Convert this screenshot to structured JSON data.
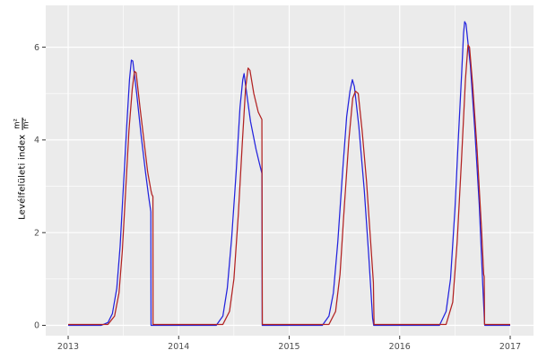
{
  "chart_data": {
    "type": "line",
    "title": "",
    "xlabel": "",
    "ylabel": {
      "text": "Levélfelületi index",
      "fraction_numerator": "m²",
      "fraction_denominator": "m²"
    },
    "x_ticks": [
      2013,
      2014,
      2015,
      2016,
      2017
    ],
    "y_ticks": [
      0,
      2,
      4,
      6
    ],
    "x_minor": [
      2013.5,
      2014.5,
      2015.5,
      2016.5
    ],
    "y_minor": [
      1,
      3,
      5
    ],
    "xlim": [
      2012.797,
      2017.211
    ],
    "ylim": [
      -0.223,
      6.902
    ],
    "grid": true,
    "legend_position": "none",
    "panel_background": "#ebebeb",
    "grid_color": "#ffffff",
    "tick_color": "#333333",
    "tick_label_color": "#4d4d4d",
    "series": [
      {
        "name": "blue-series",
        "color": "#2323dd",
        "points": [
          [
            2013.0,
            0
          ],
          [
            2013.3,
            0
          ],
          [
            2013.36,
            0.06
          ],
          [
            2013.4,
            0.25
          ],
          [
            2013.44,
            0.8
          ],
          [
            2013.47,
            1.7
          ],
          [
            2013.5,
            3.0
          ],
          [
            2013.53,
            4.3
          ],
          [
            2013.555,
            5.3
          ],
          [
            2013.572,
            5.72
          ],
          [
            2013.585,
            5.7
          ],
          [
            2013.62,
            5.0
          ],
          [
            2013.66,
            4.1
          ],
          [
            2013.7,
            3.3
          ],
          [
            2013.73,
            2.75
          ],
          [
            2013.748,
            2.45
          ],
          [
            2013.75,
            0
          ],
          [
            2014.34,
            0
          ],
          [
            2014.4,
            0.2
          ],
          [
            2014.44,
            0.8
          ],
          [
            2014.48,
            1.9
          ],
          [
            2014.52,
            3.3
          ],
          [
            2014.555,
            4.7
          ],
          [
            2014.58,
            5.3
          ],
          [
            2014.592,
            5.43
          ],
          [
            2014.61,
            5.1
          ],
          [
            2014.65,
            4.4
          ],
          [
            2014.7,
            3.8
          ],
          [
            2014.73,
            3.5
          ],
          [
            2014.753,
            3.28
          ],
          [
            2014.756,
            0
          ],
          [
            2015.3,
            0
          ],
          [
            2015.36,
            0.2
          ],
          [
            2015.4,
            0.7
          ],
          [
            2015.44,
            1.8
          ],
          [
            2015.48,
            3.2
          ],
          [
            2015.52,
            4.5
          ],
          [
            2015.55,
            5.05
          ],
          [
            2015.572,
            5.3
          ],
          [
            2015.59,
            5.15
          ],
          [
            2015.63,
            4.3
          ],
          [
            2015.68,
            2.9
          ],
          [
            2015.72,
            1.5
          ],
          [
            2015.755,
            0.15
          ],
          [
            2015.765,
            0
          ],
          [
            2016.36,
            0
          ],
          [
            2016.42,
            0.3
          ],
          [
            2016.46,
            1.0
          ],
          [
            2016.5,
            2.5
          ],
          [
            2016.53,
            4.0
          ],
          [
            2016.56,
            5.4
          ],
          [
            2016.578,
            6.3
          ],
          [
            2016.588,
            6.55
          ],
          [
            2016.6,
            6.5
          ],
          [
            2016.64,
            5.6
          ],
          [
            2016.68,
            4.2
          ],
          [
            2016.72,
            2.6
          ],
          [
            2016.755,
            0.7
          ],
          [
            2016.768,
            0.05
          ],
          [
            2016.77,
            0
          ],
          [
            2017.0,
            0
          ]
        ]
      },
      {
        "name": "red-series",
        "color": "#b22222",
        "points": [
          [
            2013.0,
            0.02
          ],
          [
            2013.36,
            0.02
          ],
          [
            2013.42,
            0.2
          ],
          [
            2013.46,
            0.7
          ],
          [
            2013.49,
            1.6
          ],
          [
            2013.52,
            2.9
          ],
          [
            2013.55,
            4.2
          ],
          [
            2013.58,
            5.1
          ],
          [
            2013.6,
            5.48
          ],
          [
            2013.615,
            5.45
          ],
          [
            2013.65,
            4.7
          ],
          [
            2013.69,
            3.9
          ],
          [
            2013.72,
            3.3
          ],
          [
            2013.75,
            2.9
          ],
          [
            2013.758,
            2.82
          ],
          [
            2013.767,
            2.78
          ],
          [
            2013.768,
            0.02
          ],
          [
            2014.4,
            0.02
          ],
          [
            2014.46,
            0.3
          ],
          [
            2014.5,
            1.0
          ],
          [
            2014.54,
            2.4
          ],
          [
            2014.575,
            3.9
          ],
          [
            2014.605,
            5.1
          ],
          [
            2014.628,
            5.55
          ],
          [
            2014.645,
            5.5
          ],
          [
            2014.68,
            5.0
          ],
          [
            2014.72,
            4.6
          ],
          [
            2014.753,
            4.44
          ],
          [
            2014.757,
            0.02
          ],
          [
            2015.36,
            0.02
          ],
          [
            2015.42,
            0.3
          ],
          [
            2015.46,
            1.1
          ],
          [
            2015.5,
            2.6
          ],
          [
            2015.54,
            4.0
          ],
          [
            2015.575,
            4.9
          ],
          [
            2015.6,
            5.05
          ],
          [
            2015.625,
            5.0
          ],
          [
            2015.66,
            4.2
          ],
          [
            2015.7,
            3.1
          ],
          [
            2015.74,
            1.7
          ],
          [
            2015.762,
            0.92
          ],
          [
            2015.768,
            0.02
          ],
          [
            2016.42,
            0.02
          ],
          [
            2016.48,
            0.5
          ],
          [
            2016.52,
            1.8
          ],
          [
            2016.56,
            3.6
          ],
          [
            2016.595,
            5.3
          ],
          [
            2016.618,
            6.05
          ],
          [
            2016.632,
            6.0
          ],
          [
            2016.66,
            5.2
          ],
          [
            2016.7,
            3.8
          ],
          [
            2016.74,
            2.1
          ],
          [
            2016.76,
            1.1
          ],
          [
            2016.765,
            1.05
          ],
          [
            2016.768,
            0.02
          ],
          [
            2017.0,
            0.02
          ]
        ]
      }
    ]
  }
}
